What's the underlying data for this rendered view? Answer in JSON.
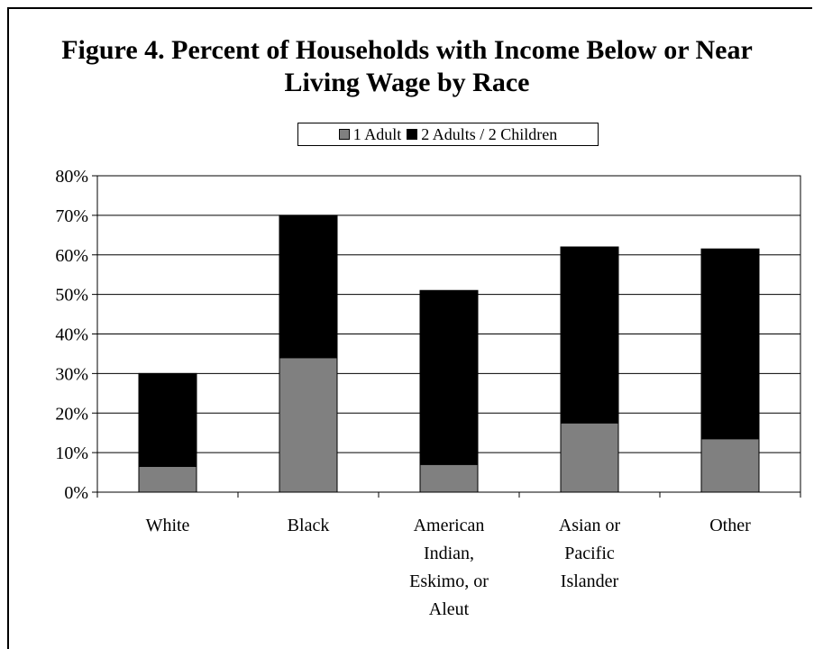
{
  "chart_data": {
    "type": "bar",
    "stacked": true,
    "title_lines": [
      "Figure 4. Percent of Households with Income Below or Near",
      "Living Wage by Race"
    ],
    "categories": [
      [
        "White"
      ],
      [
        "Black"
      ],
      [
        "American",
        "Indian,",
        "Eskimo, or",
        "Aleut"
      ],
      [
        "Asian or",
        "Pacific",
        "Islander"
      ],
      [
        "Other"
      ]
    ],
    "series": [
      {
        "name": "1 Adult",
        "color": "#808080",
        "values": [
          6.5,
          34,
          7,
          17.5,
          13.5
        ]
      },
      {
        "name": "2 Adults / 2 Children",
        "color": "#000000",
        "values": [
          23.5,
          36,
          44,
          44.5,
          48
        ]
      }
    ],
    "y_ticks": [
      "0%",
      "10%",
      "20%",
      "30%",
      "40%",
      "50%",
      "60%",
      "70%",
      "80%"
    ],
    "ylim": [
      0,
      80
    ],
    "grid": true,
    "legend_position": "top"
  }
}
